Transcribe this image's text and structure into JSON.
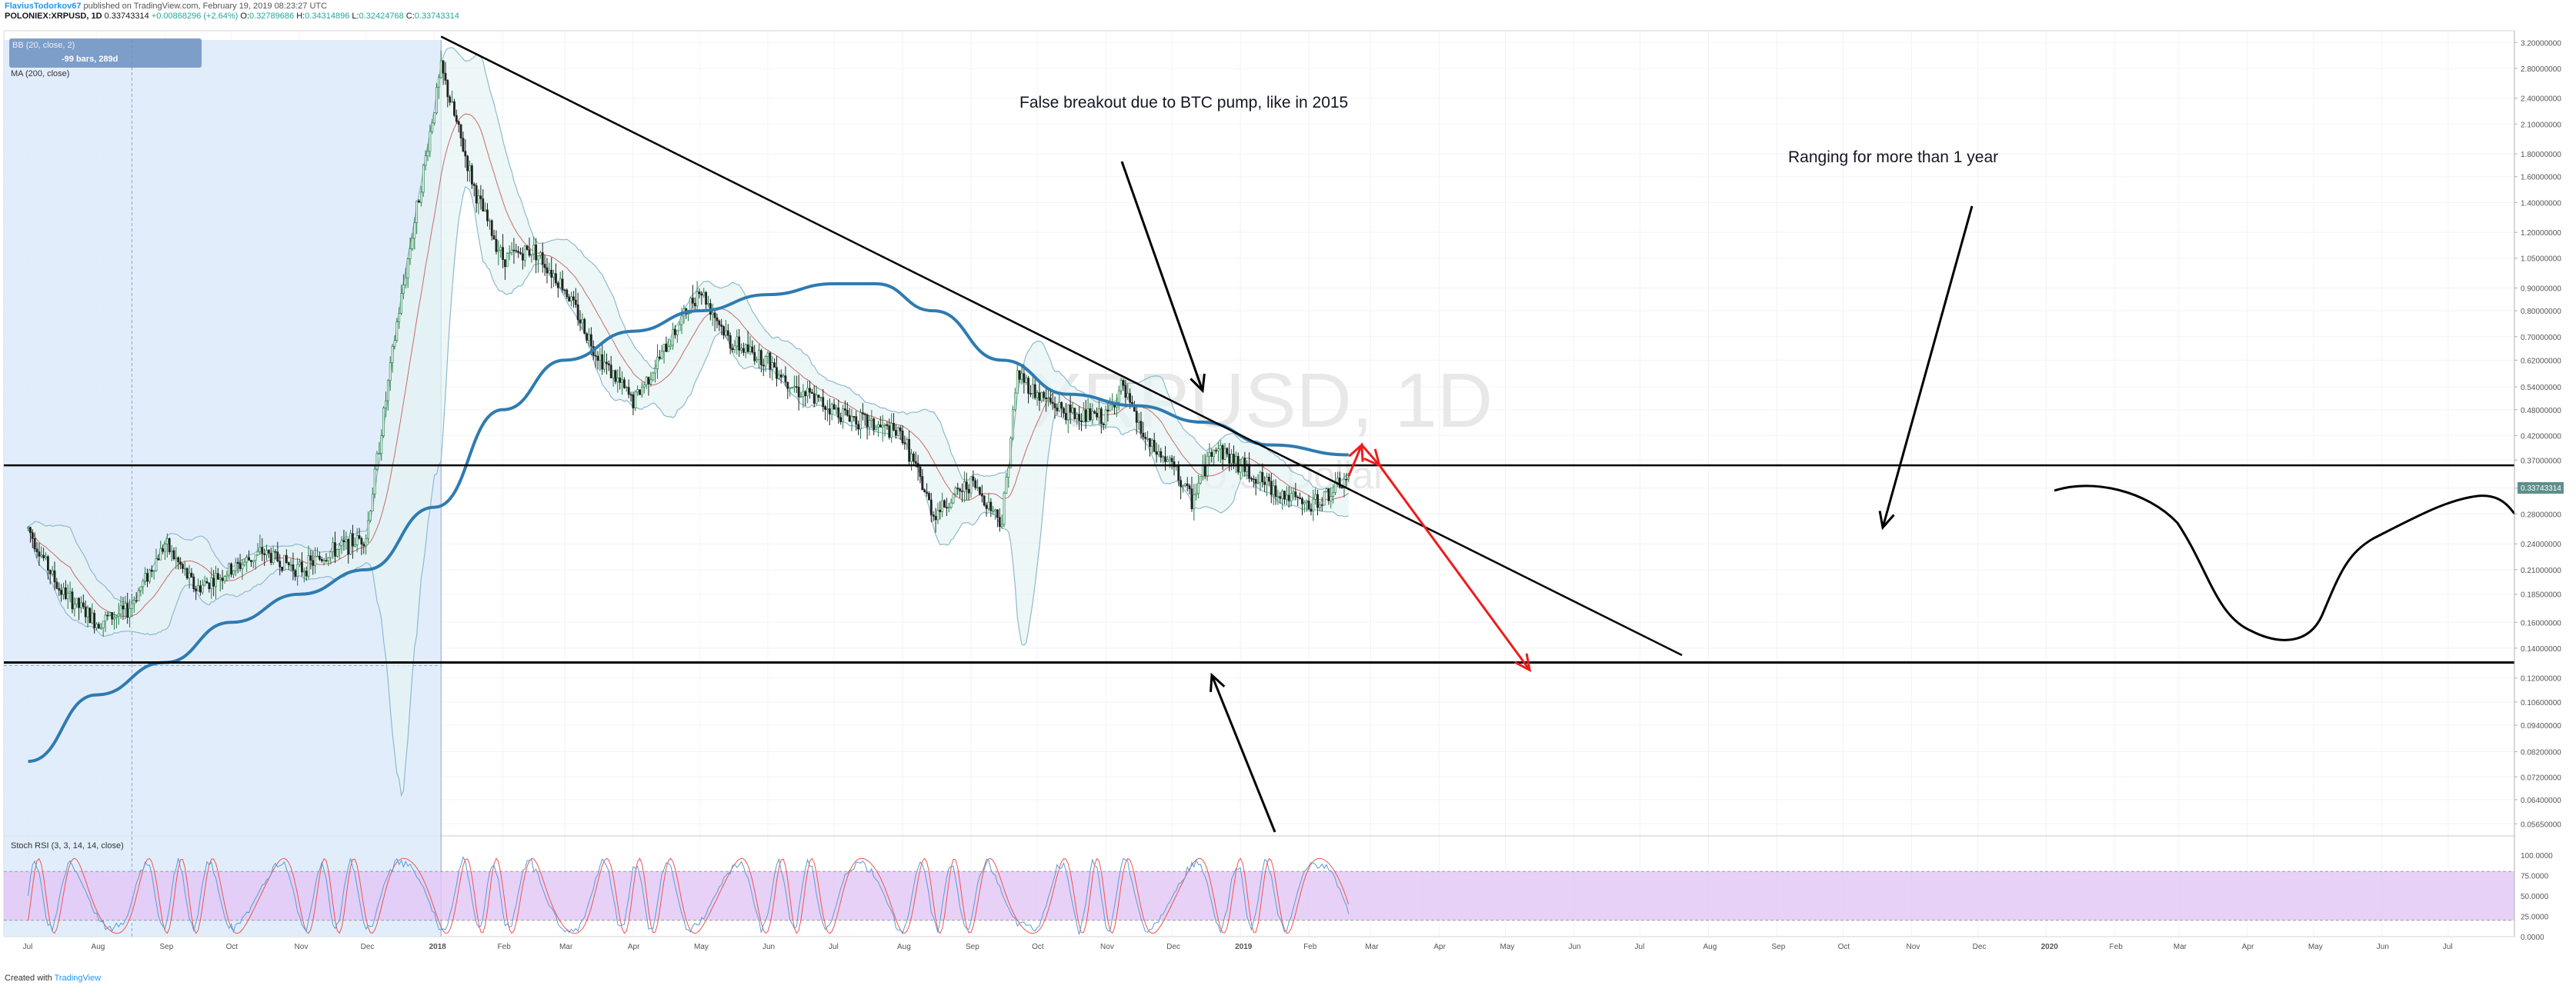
{
  "header": {
    "author": "FlaviusTodorkov67",
    "published": "published on TradingView.com, February 19, 2019 08:23:27 UTC",
    "symbol_line": "POLONIEX:XRPUSD, 1D",
    "last": "0.33743314",
    "change": "+0.00868296 (+2.64%)",
    "open_label": "O:",
    "open": "0.32789686",
    "high_label": "H:",
    "high": "0.34314896",
    "low_label": "L:",
    "low": "0.32424768",
    "close_label": "C:",
    "close": "0.33743314"
  },
  "indicators": {
    "bb_label": "BB (20, close, 2)",
    "ma_label": "MA (200, close)",
    "range_tooltip": "-99 bars, 289d",
    "stoch_label": "Stoch RSI (3, 3, 14, 14, close)"
  },
  "watermark": {
    "symbol": "XRPUSD, 1D",
    "currency": "U.S. Dollar"
  },
  "annotations": {
    "false_breakout": "False breakout due to BTC pump, like in 2015",
    "ranging": "Ranging for more than 1 year"
  },
  "price_badge": "0.33743314",
  "footer": {
    "created_with": "Created with",
    "brand": "TradingView"
  },
  "colors": {
    "up": "#26a69a",
    "down": "#ef5350",
    "ma": "#2e7bb0",
    "bb": "#8fb9cc",
    "bb_fill": "#e6f3f3",
    "selection": "#dbe9fb",
    "stoch_band": "#e2c5f5",
    "stoch_k": "#5b9bd5",
    "stoch_d": "#ef5350",
    "badge": "#5f8f8b",
    "red_arrow": "#ee1c1c"
  },
  "chart_data": {
    "type": "candlestick",
    "scale": "log",
    "y_ticks": [
      "3.20000000",
      "2.80000000",
      "2.40000000",
      "2.10000000",
      "1.80000000",
      "1.60000000",
      "1.40000000",
      "1.20000000",
      "1.05000000",
      "0.90000000",
      "0.80000000",
      "0.70000000",
      "0.62000000",
      "0.54000000",
      "0.48000000",
      "0.42000000",
      "0.37000000",
      "0.32000000",
      "0.28000000",
      "0.24000000",
      "0.21000000",
      "0.18500000",
      "0.16000000",
      "0.14000000",
      "0.12000000",
      "0.10600000",
      "0.09400000",
      "0.08200000",
      "0.07200000",
      "0.06400000",
      "0.05650000"
    ],
    "stoch_ticks": [
      "100.0000",
      "75.0000",
      "50.0000",
      "25.0000",
      "0.0000"
    ],
    "x_ticks": [
      "Jul",
      "Aug",
      "Sep",
      "Oct",
      "Nov",
      "Dec",
      "2018",
      "Feb",
      "Mar",
      "Apr",
      "May",
      "Jun",
      "Jul",
      "Aug",
      "Sep",
      "Oct",
      "Nov",
      "Dec",
      "2019",
      "Feb",
      "Mar",
      "Apr",
      "May",
      "Jun",
      "Jul",
      "Aug",
      "Sep",
      "Oct",
      "Nov",
      "Dec",
      "2020",
      "Feb",
      "Mar",
      "Apr",
      "May",
      "Jun",
      "Jul"
    ],
    "price_path": [
      [
        "2017-07-01",
        0.26
      ],
      [
        "2017-07-15",
        0.19
      ],
      [
        "2017-08-01",
        0.16
      ],
      [
        "2017-08-15",
        0.17
      ],
      [
        "2017-09-01",
        0.24
      ],
      [
        "2017-09-15",
        0.19
      ],
      [
        "2017-10-01",
        0.21
      ],
      [
        "2017-10-15",
        0.23
      ],
      [
        "2017-11-01",
        0.21
      ],
      [
        "2017-11-15",
        0.23
      ],
      [
        "2017-12-01",
        0.25
      ],
      [
        "2017-12-15",
        0.75
      ],
      [
        "2018-01-04",
        2.8
      ],
      [
        "2018-01-20",
        1.45
      ],
      [
        "2018-02-01",
        1.05
      ],
      [
        "2018-02-15",
        1.1
      ],
      [
        "2018-03-01",
        0.9
      ],
      [
        "2018-03-15",
        0.65
      ],
      [
        "2018-04-01",
        0.5
      ],
      [
        "2018-04-15",
        0.65
      ],
      [
        "2018-05-01",
        0.9
      ],
      [
        "2018-05-15",
        0.68
      ],
      [
        "2018-06-01",
        0.62
      ],
      [
        "2018-06-15",
        0.53
      ],
      [
        "2018-07-01",
        0.48
      ],
      [
        "2018-07-15",
        0.45
      ],
      [
        "2018-08-01",
        0.42
      ],
      [
        "2018-08-15",
        0.28
      ],
      [
        "2018-09-01",
        0.33
      ],
      [
        "2018-09-15",
        0.27
      ],
      [
        "2018-09-22",
        0.58
      ],
      [
        "2018-10-01",
        0.52
      ],
      [
        "2018-10-15",
        0.47
      ],
      [
        "2018-11-01",
        0.46
      ],
      [
        "2018-11-08",
        0.54
      ],
      [
        "2018-11-20",
        0.4
      ],
      [
        "2018-12-01",
        0.36
      ],
      [
        "2018-12-10",
        0.3
      ],
      [
        "2018-12-20",
        0.4
      ],
      [
        "2019-01-01",
        0.36
      ],
      [
        "2019-01-15",
        0.32
      ],
      [
        "2019-02-01",
        0.29
      ],
      [
        "2019-02-10",
        0.31
      ],
      [
        "2019-02-19",
        0.3374
      ]
    ],
    "ma200_path": [
      [
        "2017-07-01",
        0.078
      ],
      [
        "2017-08-01",
        0.11
      ],
      [
        "2017-09-01",
        0.13
      ],
      [
        "2017-10-01",
        0.16
      ],
      [
        "2017-11-01",
        0.185
      ],
      [
        "2017-12-01",
        0.21
      ],
      [
        "2018-01-01",
        0.29
      ],
      [
        "2018-02-01",
        0.48
      ],
      [
        "2018-03-01",
        0.62
      ],
      [
        "2018-04-01",
        0.72
      ],
      [
        "2018-05-01",
        0.8
      ],
      [
        "2018-06-01",
        0.87
      ],
      [
        "2018-07-01",
        0.92
      ],
      [
        "2018-07-20",
        0.92
      ],
      [
        "2018-08-15",
        0.8
      ],
      [
        "2018-09-15",
        0.62
      ],
      [
        "2018-10-15",
        0.52
      ],
      [
        "2018-11-15",
        0.49
      ],
      [
        "2018-12-15",
        0.45
      ],
      [
        "2019-01-15",
        0.4
      ],
      [
        "2019-02-19",
        0.38
      ]
    ],
    "lines": [
      {
        "type": "trendline",
        "from": [
          "2018-01-04",
          3.3
        ],
        "to": [
          "2019-07-20",
          0.135
        ]
      },
      {
        "type": "horizontal",
        "price": 0.36
      },
      {
        "type": "horizontal",
        "price": 0.13
      }
    ],
    "projection": [
      [
        "2019-02-19",
        0.34
      ],
      [
        "2019-02-25",
        0.4
      ],
      [
        "2019-03-05",
        0.36
      ],
      [
        "2019-05-12",
        0.125
      ]
    ]
  }
}
